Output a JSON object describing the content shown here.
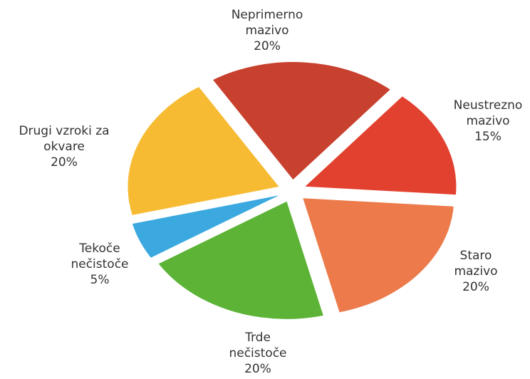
{
  "chart_data": {
    "type": "pie",
    "categories": [
      "Neprimerno mazivo",
      "Neustrezno mazivo",
      "Staro mazivo",
      "Trde nečistoče",
      "Tekoče nečistoče",
      "Drugi vzroki za okvare"
    ],
    "values": [
      20,
      15,
      20,
      20,
      5,
      20
    ],
    "value_labels": [
      "20%",
      "15%",
      "20%",
      "20%",
      "5%",
      "20%"
    ],
    "colors": [
      "#c8402e",
      "#e2412f",
      "#ec7a4a",
      "#5cb336",
      "#3ba9e0",
      "#f7bb33"
    ]
  }
}
